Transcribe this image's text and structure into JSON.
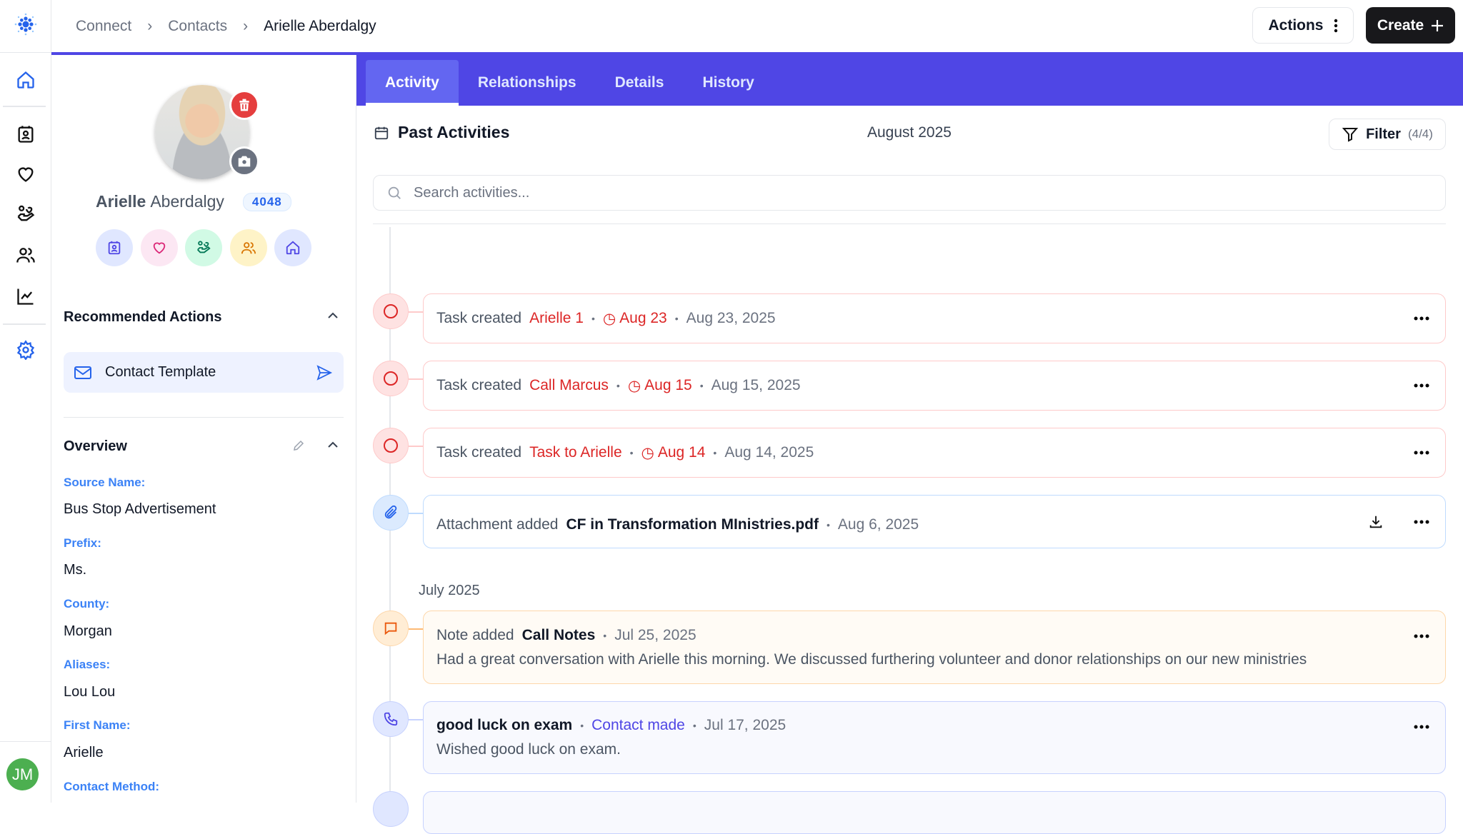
{
  "breadcrumb": [
    "Connect",
    "Contacts",
    "Arielle Aberdalgy"
  ],
  "header": {
    "actions_label": "Actions",
    "create_label": "Create"
  },
  "colors": {
    "accent": "#4f46e5",
    "task": "#dc2626",
    "attachment": "#3b82f6",
    "note": "#ea580c",
    "contact": "#4f46e5",
    "avatar_jm": "#4caf50"
  },
  "rail": {
    "items": [
      "home-icon",
      "contacts-icon",
      "heart-icon",
      "hand-heart-icon",
      "users-icon",
      "chart-icon",
      "gear-icon"
    ],
    "user_initials": "JM"
  },
  "profile": {
    "first": "Arielle",
    "last": "Aberdalgy",
    "id": "4048",
    "quick_actions": [
      "contact-card-icon",
      "heart-icon",
      "hand-heart-icon",
      "users-icon",
      "home-icon"
    ]
  },
  "recommended": {
    "title": "Recommended Actions",
    "item": "Contact Template"
  },
  "overview": {
    "title": "Overview",
    "fields": [
      {
        "label": "Source Name:",
        "value": "Bus Stop Advertisement"
      },
      {
        "label": "Prefix:",
        "value": "Ms."
      },
      {
        "label": "County:",
        "value": "Morgan"
      },
      {
        "label": "Aliases:",
        "value": "Lou Lou"
      },
      {
        "label": "First Name:",
        "value": "Arielle"
      },
      {
        "label": "Contact Method:",
        "value": ""
      }
    ]
  },
  "tabs": [
    "Activity",
    "Relationships",
    "Details",
    "History"
  ],
  "activity": {
    "title": "Past Activities",
    "month": "August 2025",
    "filter_label": "Filter",
    "filter_count": "(4/4)",
    "search_placeholder": "Search activities...",
    "july_label": "July 2025",
    "items": [
      {
        "type": "Task created",
        "name": "Arielle 1",
        "due": "Aug 23",
        "date": "Aug 23, 2025"
      },
      {
        "type": "Task created",
        "name": "Call Marcus",
        "due": "Aug 15",
        "date": "Aug 15, 2025"
      },
      {
        "type": "Task created",
        "name": "Task to Arielle",
        "due": "Aug 14",
        "date": "Aug 14, 2025"
      },
      {
        "type": "Attachment added",
        "name": "CF in Transformation MInistries.pdf",
        "date": "Aug 6, 2025"
      },
      {
        "type": "Note added",
        "name": "Call Notes",
        "date": "Jul 25, 2025",
        "body": "Had a great conversation with Arielle this morning. We discussed furthering volunteer and donor relationships on our new ministries"
      },
      {
        "name": "good luck on exam",
        "kind": "Contact made",
        "date": "Jul 17, 2025",
        "body": "Wished good luck on exam."
      }
    ]
  }
}
